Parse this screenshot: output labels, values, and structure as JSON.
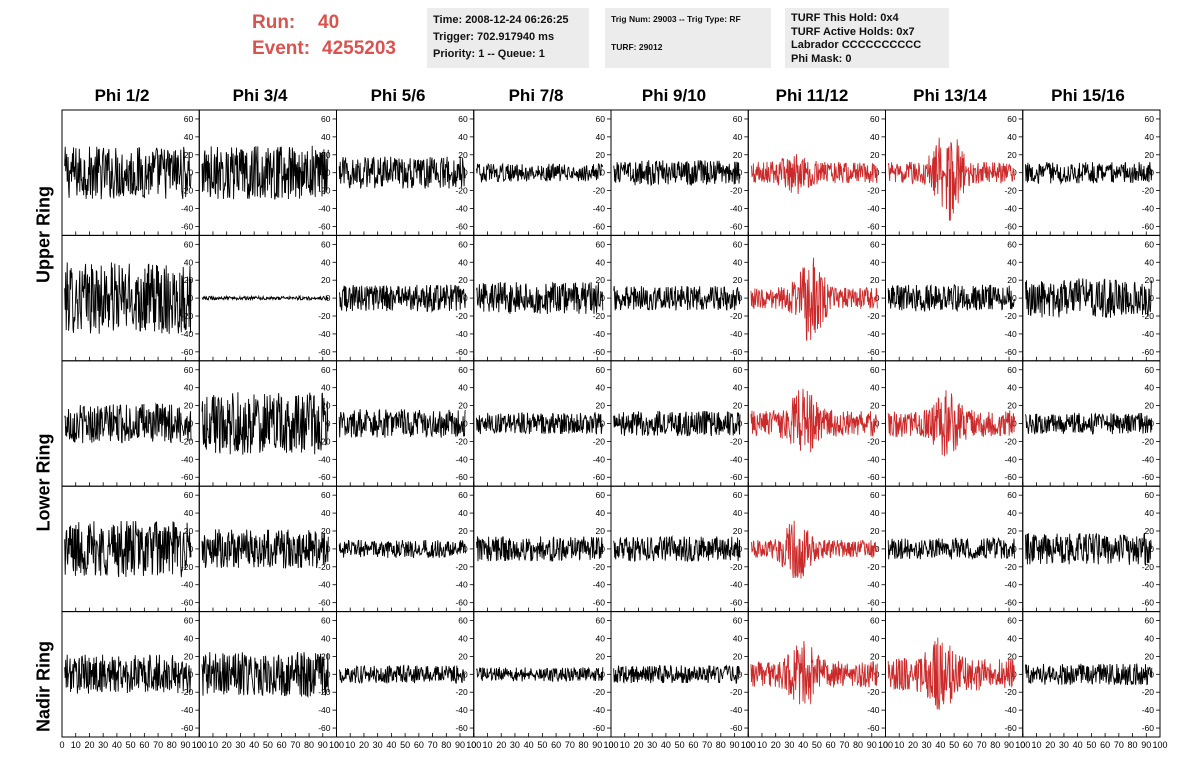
{
  "header": {
    "run_label": "Run:",
    "run_value": "40",
    "event_label": "Event:",
    "event_value": "4255203"
  },
  "info_boxes": {
    "time_line": "Time: 2008-12-24 06:26:25",
    "trigger_line": "Trigger: 702.917940 ms",
    "priority_line": "Priority: 1 -- Queue: 1",
    "trig_line": "Trig Num: 29003 -- Trig Type: RF",
    "turf_line": "TURF: 29012",
    "hold_line": "TURF This Hold: 0x4",
    "active_line": "TURF Active Holds: 0x7",
    "labrador_line": "Labrador CCCCCCCCCC",
    "phimask_line": "Phi Mask: 0"
  },
  "colors": {
    "accent": "#d9534f",
    "trace_default": "#000000",
    "trace_highlight": "#cc2a2a",
    "info_bg": "#ececec"
  },
  "chart_data": {
    "type": "line",
    "columns": [
      "Phi 1/2",
      "Phi 3/4",
      "Phi 5/6",
      "Phi 7/8",
      "Phi 9/10",
      "Phi 11/12",
      "Phi 13/14",
      "Phi 15/16"
    ],
    "rows": [
      "Upper Ring",
      "Upper Ring",
      "Lower Ring",
      "Lower Ring",
      "Nadir Ring"
    ],
    "ring_labels": [
      "Upper Ring",
      "Lower Ring",
      "Nadir Ring"
    ],
    "xlim": [
      0,
      100
    ],
    "ylim": [
      -70,
      70
    ],
    "yticks": [
      -60,
      -40,
      -20,
      0,
      20,
      40,
      60
    ],
    "xticks": [
      0,
      10,
      20,
      30,
      40,
      50,
      60,
      70,
      80,
      90,
      100
    ],
    "highlighted_cells": [
      [
        0,
        5
      ],
      [
        0,
        6
      ],
      [
        1,
        5
      ],
      [
        2,
        5
      ],
      [
        2,
        6
      ],
      [
        3,
        5
      ],
      [
        4,
        5
      ],
      [
        4,
        6
      ]
    ],
    "panels": [
      [
        {
          "amp": 30,
          "pulse": 0,
          "pulse_center": 50
        },
        {
          "amp": 30,
          "pulse": 0,
          "pulse_center": 50
        },
        {
          "amp": 18,
          "pulse": 0,
          "pulse_center": 50
        },
        {
          "amp": 10,
          "pulse": 0,
          "pulse_center": 50
        },
        {
          "amp": 14,
          "pulse": 0,
          "pulse_center": 50
        },
        {
          "amp": 12,
          "pulse": 12,
          "pulse_center": 35
        },
        {
          "amp": 12,
          "pulse": 45,
          "pulse_center": 45
        },
        {
          "amp": 12,
          "pulse": 0,
          "pulse_center": 50
        }
      ],
      [
        {
          "amp": 40,
          "pulse": 0,
          "pulse_center": 50
        },
        {
          "amp": 2,
          "pulse": 0,
          "pulse_center": 50
        },
        {
          "amp": 15,
          "pulse": 0,
          "pulse_center": 50
        },
        {
          "amp": 18,
          "pulse": 0,
          "pulse_center": 50
        },
        {
          "amp": 14,
          "pulse": 0,
          "pulse_center": 50
        },
        {
          "amp": 12,
          "pulse": 38,
          "pulse_center": 45
        },
        {
          "amp": 15,
          "pulse": 0,
          "pulse_center": 50
        },
        {
          "amp": 22,
          "pulse": 0,
          "pulse_center": 50
        }
      ],
      [
        {
          "amp": 22,
          "pulse": 0,
          "pulse_center": 50
        },
        {
          "amp": 35,
          "pulse": 0,
          "pulse_center": 50
        },
        {
          "amp": 16,
          "pulse": 0,
          "pulse_center": 50
        },
        {
          "amp": 12,
          "pulse": 0,
          "pulse_center": 50
        },
        {
          "amp": 14,
          "pulse": 0,
          "pulse_center": 50
        },
        {
          "amp": 15,
          "pulse": 25,
          "pulse_center": 40
        },
        {
          "amp": 15,
          "pulse": 25,
          "pulse_center": 45
        },
        {
          "amp": 12,
          "pulse": 0,
          "pulse_center": 50
        }
      ],
      [
        {
          "amp": 32,
          "pulse": 0,
          "pulse_center": 50
        },
        {
          "amp": 22,
          "pulse": 0,
          "pulse_center": 50
        },
        {
          "amp": 10,
          "pulse": 0,
          "pulse_center": 50
        },
        {
          "amp": 14,
          "pulse": 0,
          "pulse_center": 50
        },
        {
          "amp": 14,
          "pulse": 0,
          "pulse_center": 50
        },
        {
          "amp": 10,
          "pulse": 28,
          "pulse_center": 35
        },
        {
          "amp": 12,
          "pulse": 0,
          "pulse_center": 50
        },
        {
          "amp": 18,
          "pulse": 0,
          "pulse_center": 50
        }
      ],
      [
        {
          "amp": 22,
          "pulse": 0,
          "pulse_center": 50
        },
        {
          "amp": 25,
          "pulse": 0,
          "pulse_center": 50
        },
        {
          "amp": 10,
          "pulse": 0,
          "pulse_center": 50
        },
        {
          "amp": 8,
          "pulse": 0,
          "pulse_center": 50
        },
        {
          "amp": 10,
          "pulse": 0,
          "pulse_center": 50
        },
        {
          "amp": 15,
          "pulse": 25,
          "pulse_center": 40
        },
        {
          "amp": 18,
          "pulse": 25,
          "pulse_center": 40
        },
        {
          "amp": 12,
          "pulse": 0,
          "pulse_center": 50
        }
      ]
    ]
  }
}
